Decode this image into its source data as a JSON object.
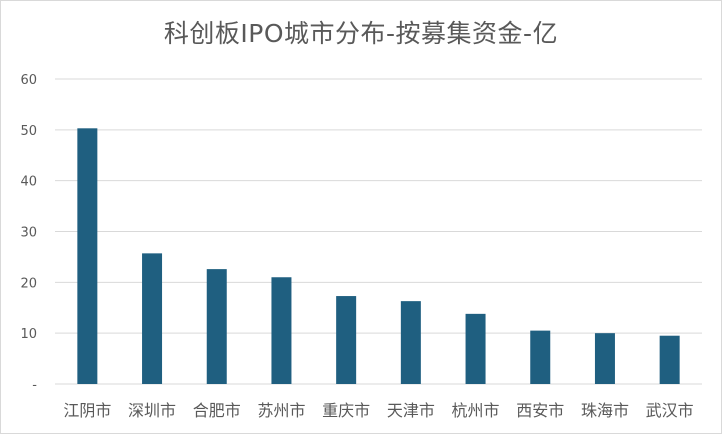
{
  "chart_data": {
    "type": "bar",
    "title": "科创板IPO城市分布-按募集资金-亿",
    "categories": [
      "江阴市",
      "深圳市",
      "合肥市",
      "苏州市",
      "重庆市",
      "天津市",
      "杭州市",
      "西安市",
      "珠海市",
      "武汉市"
    ],
    "values": [
      50.3,
      25.7,
      22.6,
      21.0,
      17.3,
      16.3,
      13.8,
      10.5,
      10.0,
      9.5
    ],
    "ylim": [
      0,
      60
    ],
    "yticks": [
      0,
      10,
      20,
      30,
      40,
      50,
      60
    ],
    "ytick_labels": [
      "-",
      "10",
      "20",
      "30",
      "40",
      "50",
      "60"
    ],
    "xlabel": "",
    "ylabel": "",
    "grid": true,
    "legend": "none",
    "bar_color": "#1f5f80",
    "grid_color": "#d9d9d9",
    "text_color": "#595959"
  }
}
